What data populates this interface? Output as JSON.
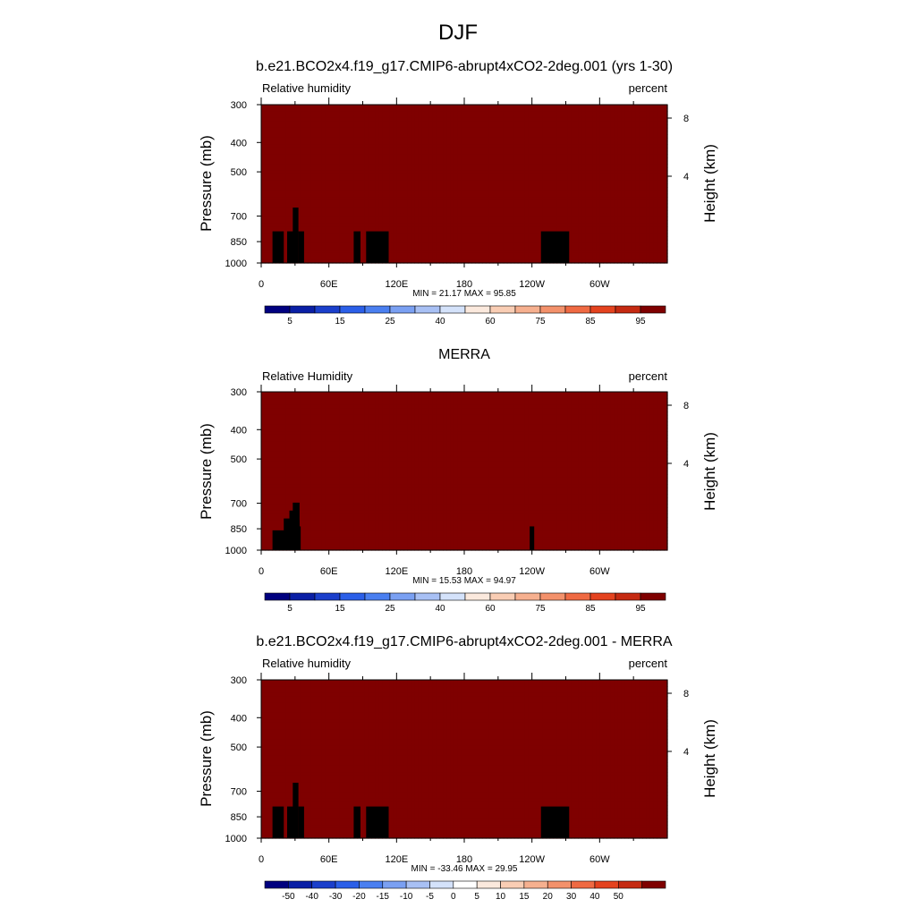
{
  "page_title": "DJF",
  "colors": {
    "abs": [
      "#00007f",
      "#0a1fa5",
      "#1b3fcb",
      "#2b5fe8",
      "#4a7ff0",
      "#7aa0f2",
      "#a8c0f4",
      "#d4e2fa",
      "#fbe9dd",
      "#f9cdb4",
      "#f6b08f",
      "#f3916b",
      "#ef6a43",
      "#e4431f",
      "#c52a12",
      "#7f0000"
    ],
    "diff": [
      "#00007f",
      "#0a1fa5",
      "#1b3fcb",
      "#2b5fe8",
      "#4a7ff0",
      "#7aa0f2",
      "#a8c0f4",
      "#d4e2fa",
      "#ffffff",
      "#fbe9dd",
      "#f9cdb4",
      "#f6b08f",
      "#f3916b",
      "#ef6a43",
      "#e4431f",
      "#c52a12",
      "#7f0000"
    ],
    "land": "#000000"
  },
  "chart_data": [
    {
      "type": "heatmap",
      "title": "b.e21.BCO2x4.f19_g17.CMIP6-abrupt4xCO2-2deg.001 (yrs 1-30)",
      "left_label": "Relative humidity",
      "right_label": "percent",
      "ylabel": "Pressure (mb)",
      "y2label": "Height (km)",
      "yticks": [
        "300",
        "400",
        "500",
        "700",
        "850",
        "1000"
      ],
      "y2ticks": [
        "8",
        "4"
      ],
      "xticks": [
        "0",
        "60E",
        "120E",
        "180",
        "120W",
        "60W"
      ],
      "stats": "MIN =  21.17  MAX =  95.85",
      "colorbar_labels": [
        "5",
        "15",
        "25",
        "40",
        "60",
        "75",
        "85",
        "95"
      ],
      "min": 21.17,
      "max": 95.85
    },
    {
      "type": "heatmap",
      "title": "MERRA",
      "left_label": "Relative Humidity",
      "right_label": "percent",
      "ylabel": "Pressure (mb)",
      "y2label": "Height (km)",
      "yticks": [
        "300",
        "400",
        "500",
        "700",
        "850",
        "1000"
      ],
      "y2ticks": [
        "8",
        "4"
      ],
      "xticks": [
        "0",
        "60E",
        "120E",
        "180",
        "120W",
        "60W"
      ],
      "stats": "MIN =  15.53  MAX =  94.97",
      "colorbar_labels": [
        "5",
        "15",
        "25",
        "40",
        "60",
        "75",
        "85",
        "95"
      ],
      "min": 15.53,
      "max": 94.97
    },
    {
      "type": "heatmap",
      "title": "b.e21.BCO2x4.f19_g17.CMIP6-abrupt4xCO2-2deg.001 - MERRA",
      "left_label": "Relative humidity",
      "right_label": "percent",
      "ylabel": "Pressure (mb)",
      "y2label": "Height (km)",
      "yticks": [
        "300",
        "400",
        "500",
        "700",
        "850",
        "1000"
      ],
      "y2ticks": [
        "8",
        "4"
      ],
      "xticks": [
        "0",
        "60E",
        "120E",
        "180",
        "120W",
        "60W"
      ],
      "stats": "MIN = -33.46  MAX =  29.95",
      "colorbar_labels": [
        "-50",
        "-40",
        "-30",
        "-20",
        "-15",
        "-10",
        "-5",
        "0",
        "5",
        "10",
        "15",
        "20",
        "30",
        "40",
        "50"
      ],
      "min": -33.46,
      "max": 29.95
    }
  ]
}
